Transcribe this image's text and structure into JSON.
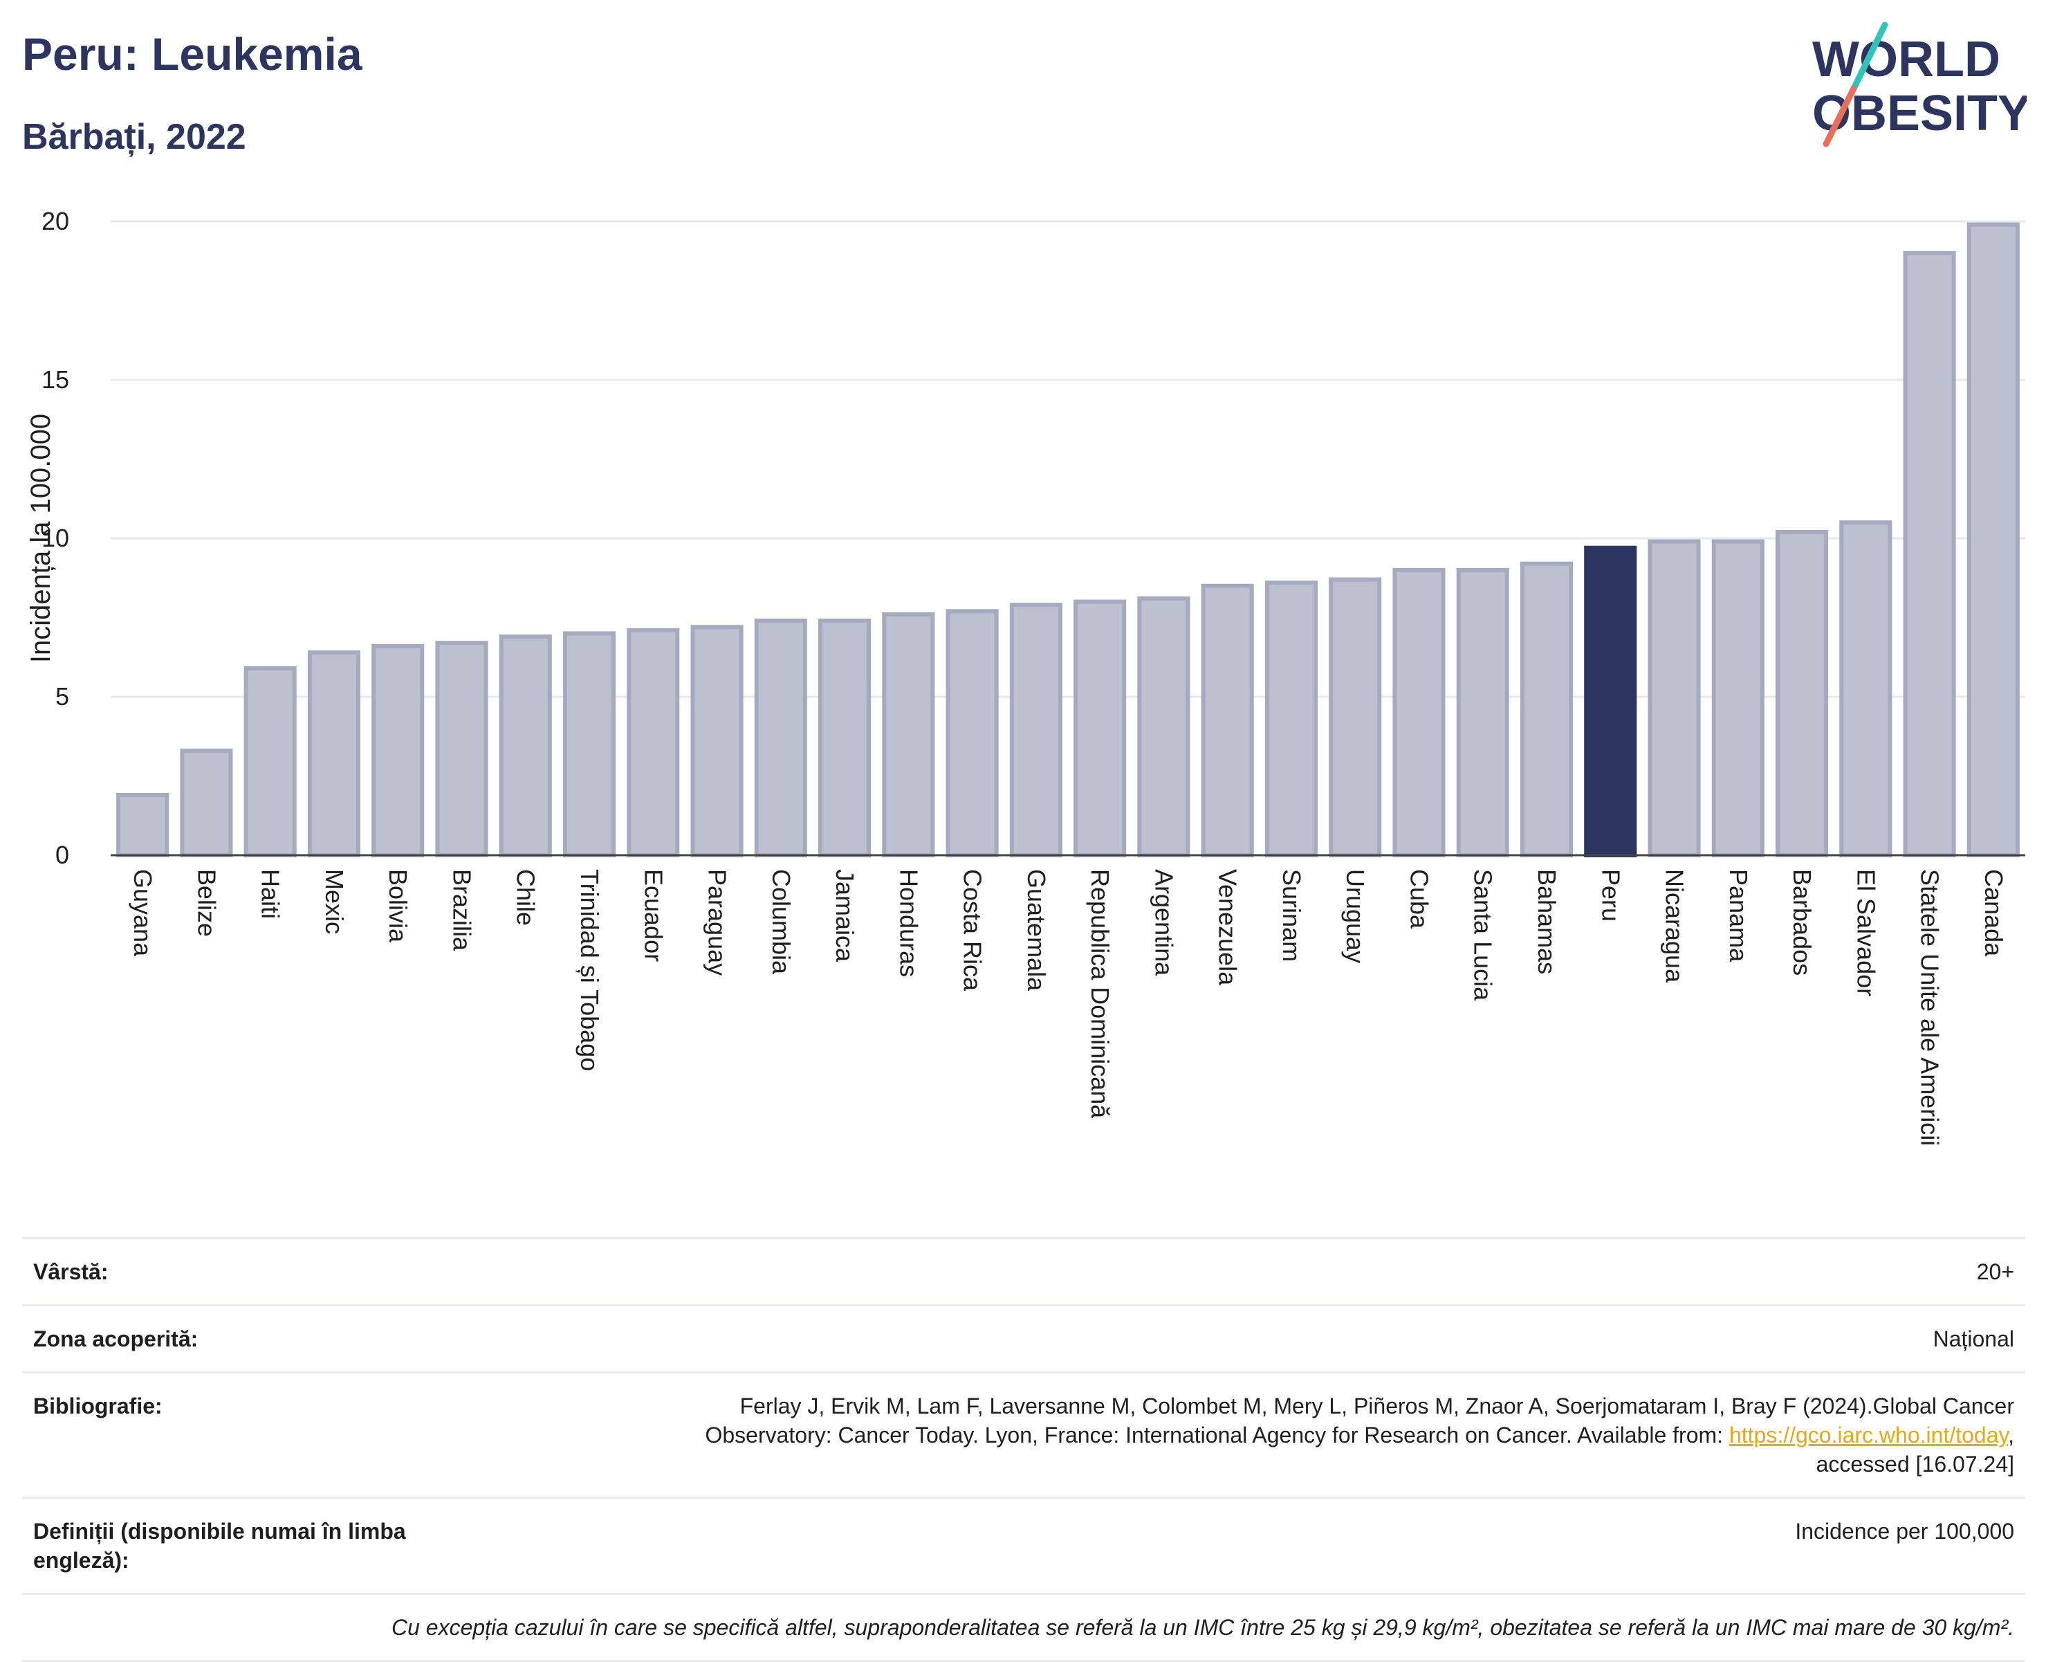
{
  "header": {
    "title": "Peru: Leukemia",
    "subtitle": "Bărbați, 2022"
  },
  "logo": {
    "line1": "WORLD",
    "line2": "OBESITY",
    "text_color": "#2b3560",
    "slash_colors": [
      "#2ec4b6",
      "#e8705a"
    ]
  },
  "colors": {
    "bar_default": "#bcc0cf",
    "bar_default_border": "#a5aac0",
    "bar_highlight": "#2b3560",
    "grid": "#e6e8f0",
    "axis": "#444444",
    "link": "#e6a817"
  },
  "chart_data": {
    "type": "bar",
    "ylabel": "Incidența la 100.000",
    "ylim": [
      0,
      20
    ],
    "yticks": [
      0,
      5,
      10,
      15,
      20
    ],
    "grid": true,
    "highlight": "Peru",
    "categories": [
      "Guyana",
      "Belize",
      "Haiti",
      "Mexic",
      "Bolivia",
      "Brazilia",
      "Chile",
      "Trinidad și Tobago",
      "Ecuador",
      "Paraguay",
      "Columbia",
      "Jamaica",
      "Honduras",
      "Costa Rica",
      "Guatemala",
      "Republica Dominicană",
      "Argentina",
      "Venezuela",
      "Surinam",
      "Uruguay",
      "Cuba",
      "Santa Lucia",
      "Bahamas",
      "Peru",
      "Nicaragua",
      "Panama",
      "Barbados",
      "El Salvador",
      "Statele Unite ale Americii",
      "Canada"
    ],
    "values": [
      1.9,
      3.3,
      5.9,
      6.4,
      6.6,
      6.7,
      6.9,
      7.0,
      7.1,
      7.2,
      7.4,
      7.4,
      7.6,
      7.7,
      7.9,
      8.0,
      8.1,
      8.5,
      8.6,
      8.7,
      9.0,
      9.0,
      9.2,
      9.7,
      9.9,
      9.9,
      10.2,
      10.5,
      19.0,
      19.9
    ]
  },
  "info": {
    "age_label": "Vârstă:",
    "age_value": "20+",
    "area_label": "Zona acoperită:",
    "area_value": "Național",
    "bib_label": "Bibliografie:",
    "bib_text_1": "Ferlay J, Ervik M, Lam F, Laversanne M, Colombet M, Mery L, Piñeros M, Znaor A, Soerjomataram I, Bray F (2024).Global Cancer",
    "bib_text_2": "Observatory: Cancer Today. Lyon, France: International Agency for Research on Cancer. Available from:",
    "bib_link": "https://gco.iarc.who.int/today",
    "bib_text_3": "accessed [16.07.24]",
    "def_label": "Definiții (disponibile numai în limba engleză):",
    "def_value": "Incidence per 100,000",
    "note": "Cu excepția cazului în care se specifică altfel, supraponderalitatea se referă la un IMC între 25 kg și 29,9 kg/m², obezitatea se referă la un IMC mai mare de 30 kg/m²."
  }
}
